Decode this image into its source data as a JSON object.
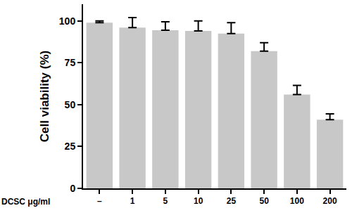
{
  "chart_data": {
    "type": "bar",
    "ylabel": "Cell viability (%)",
    "xlabel": "DCSC μg/ml",
    "categories": [
      "–",
      "1",
      "5",
      "10",
      "25",
      "50",
      "100",
      "200"
    ],
    "values": [
      99,
      96,
      94.5,
      94,
      92.5,
      82,
      56,
      41
    ],
    "errors": [
      1,
      6,
      5,
      6,
      6.5,
      5,
      5.5,
      3.5
    ],
    "color": "#c8c8c8",
    "ylim": [
      0,
      110
    ],
    "yticks": [
      0,
      25,
      50,
      75,
      100
    ],
    "grid": false
  }
}
